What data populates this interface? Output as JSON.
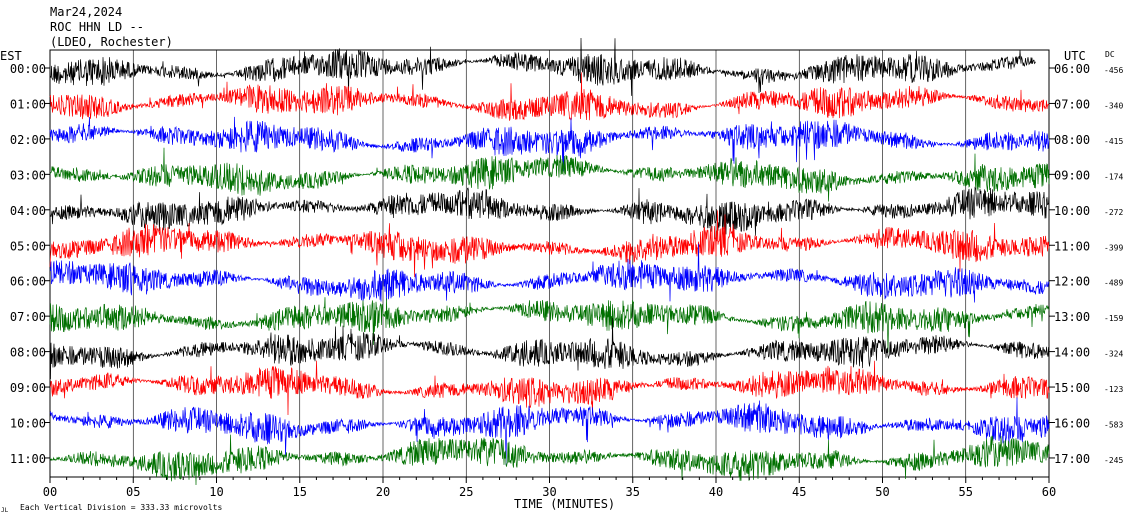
{
  "header": {
    "date": "Mar24,2024",
    "station": "ROC HHN LD --",
    "network": "(LDEO, Rochester)"
  },
  "left_zone": "EST",
  "right_zone": "UTC",
  "dc_header": "DC",
  "footer_note": "Each Vertical Division =  333.33 microvolts",
  "footer_corner": "JL",
  "chart_data": {
    "type": "line",
    "title": "",
    "xlabel": "TIME (MINUTES)",
    "ylabel": "",
    "xlim": [
      0,
      60
    ],
    "x_ticks": [
      "00",
      "05",
      "10",
      "15",
      "20",
      "25",
      "30",
      "35",
      "40",
      "45",
      "50",
      "55",
      "60"
    ],
    "grid": true,
    "trace_colors": [
      "#000000",
      "#ff0000",
      "#0000ff",
      "#007000"
    ],
    "rows": [
      {
        "left": "00:00",
        "right": "06:00",
        "dc": "-456"
      },
      {
        "left": "01:00",
        "right": "07:00",
        "dc": "-340"
      },
      {
        "left": "02:00",
        "right": "08:00",
        "dc": "-415"
      },
      {
        "left": "03:00",
        "right": "09:00",
        "dc": "-174"
      },
      {
        "left": "04:00",
        "right": "10:00",
        "dc": "-272"
      },
      {
        "left": "05:00",
        "right": "11:00",
        "dc": "-399"
      },
      {
        "left": "06:00",
        "right": "12:00",
        "dc": "-489"
      },
      {
        "left": "07:00",
        "right": "13:00",
        "dc": "-159"
      },
      {
        "left": "08:00",
        "right": "14:00",
        "dc": "-324"
      },
      {
        "left": "09:00",
        "right": "15:00",
        "dc": "-123"
      },
      {
        "left": "10:00",
        "right": "16:00",
        "dc": "-583"
      },
      {
        "left": "11:00",
        "right": "17:00",
        "dc": "-245"
      }
    ]
  }
}
